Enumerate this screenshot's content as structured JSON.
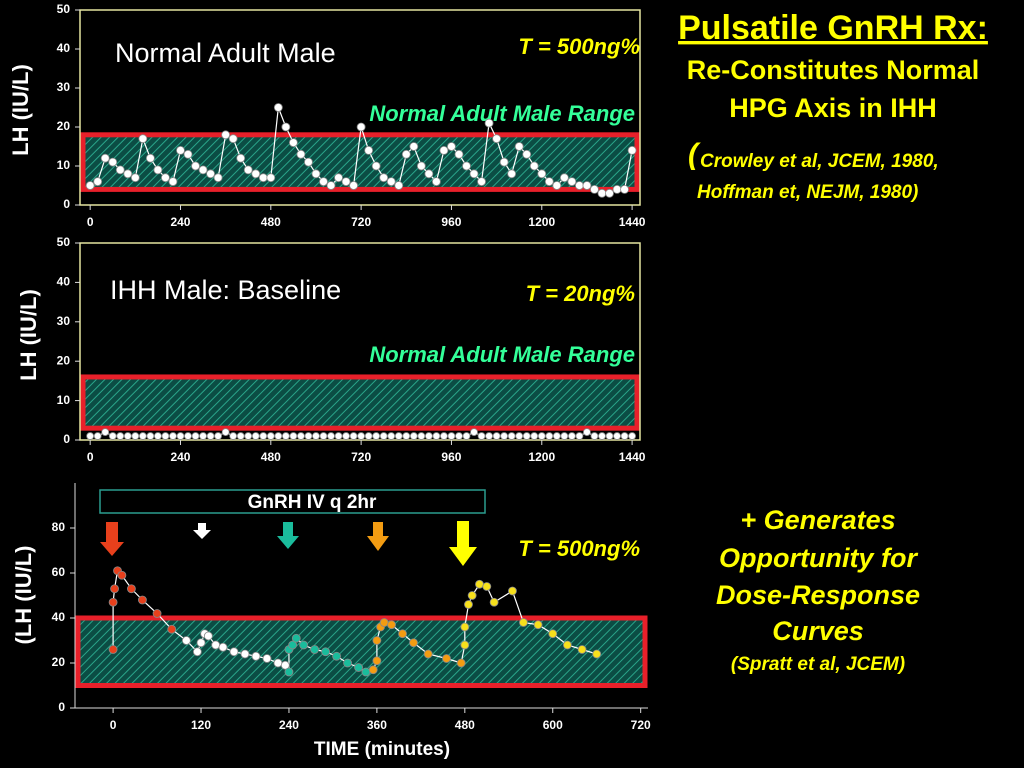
{
  "slide": {
    "title": "Pulsatile GnRH Rx:",
    "subtitle_lines": [
      "Re-Constitutes Normal",
      "HPG Axis in IHH"
    ],
    "citation_open": "(",
    "citation_lines": [
      "Crowley et al, JCEM, 1980,",
      "Hoffman et, NEJM, 1980)"
    ],
    "note_lines": [
      "+ Generates",
      "Opportunity for",
      "Dose-Response",
      "Curves"
    ],
    "note_citation": "(Spratt et al, JCEM)"
  },
  "chart_data": [
    {
      "type": "line",
      "title": "Normal Adult Male",
      "annotation": "T = 500ng%",
      "range_label": "Normal Adult Male Range",
      "ylabel": "LH (IU/L)",
      "normal_range": [
        4,
        18
      ],
      "xlim": [
        -27,
        1461
      ],
      "ylim": [
        0,
        50
      ],
      "xticks": [
        0,
        240,
        480,
        720,
        960,
        1200,
        1440
      ],
      "yticks": [
        0,
        10,
        20,
        30,
        40,
        50
      ],
      "x": [
        0,
        20,
        40,
        60,
        80,
        100,
        120,
        140,
        160,
        180,
        200,
        220,
        240,
        260,
        280,
        300,
        320,
        340,
        360,
        380,
        400,
        420,
        440,
        460,
        480,
        500,
        520,
        540,
        560,
        580,
        600,
        620,
        640,
        660,
        680,
        700,
        720,
        740,
        760,
        780,
        800,
        820,
        840,
        860,
        880,
        900,
        920,
        940,
        960,
        980,
        1000,
        1020,
        1040,
        1060,
        1080,
        1100,
        1120,
        1140,
        1160,
        1180,
        1200,
        1220,
        1240,
        1260,
        1280,
        1300,
        1320,
        1340,
        1360,
        1380,
        1400,
        1420,
        1440
      ],
      "series": [
        {
          "color": "#ffffff",
          "values": [
            5,
            6,
            12,
            11,
            9,
            8,
            7,
            17,
            12,
            9,
            7,
            6,
            14,
            13,
            10,
            9,
            8,
            7,
            18,
            17,
            12,
            9,
            8,
            7,
            7,
            25,
            20,
            16,
            13,
            11,
            8,
            6,
            5,
            7,
            6,
            5,
            20,
            14,
            10,
            7,
            6,
            5,
            13,
            15,
            10,
            8,
            6,
            14,
            15,
            13,
            10,
            8,
            6,
            21,
            17,
            11,
            8,
            15,
            13,
            10,
            8,
            6,
            5,
            7,
            6,
            5,
            5,
            4,
            3,
            3,
            4,
            4,
            14
          ]
        }
      ]
    },
    {
      "type": "line",
      "title": "IHH Male: Baseline",
      "annotation": "T = 20ng%",
      "range_label": "Normal Adult Male Range",
      "ylabel": "LH (IU/L)",
      "normal_range": [
        3,
        16
      ],
      "xlim": [
        -27,
        1461
      ],
      "ylim": [
        0,
        50
      ],
      "xticks": [
        0,
        240,
        480,
        720,
        960,
        1200,
        1440
      ],
      "yticks": [
        0,
        10,
        20,
        30,
        40,
        50
      ],
      "x": [
        0,
        20,
        40,
        60,
        80,
        100,
        120,
        140,
        160,
        180,
        200,
        220,
        240,
        260,
        280,
        300,
        320,
        340,
        360,
        380,
        400,
        420,
        440,
        460,
        480,
        500,
        520,
        540,
        560,
        580,
        600,
        620,
        640,
        660,
        680,
        700,
        720,
        740,
        760,
        780,
        800,
        820,
        840,
        860,
        880,
        900,
        920,
        940,
        960,
        980,
        1000,
        1020,
        1040,
        1060,
        1080,
        1100,
        1120,
        1140,
        1160,
        1180,
        1200,
        1220,
        1240,
        1260,
        1280,
        1300,
        1320,
        1340,
        1360,
        1380,
        1400,
        1420,
        1440
      ],
      "series": [
        {
          "color": "#ffffff",
          "values": [
            1,
            1,
            2,
            1,
            1,
            1,
            1,
            1,
            1,
            1,
            1,
            1,
            1,
            1,
            1,
            1,
            1,
            1,
            2,
            1,
            1,
            1,
            1,
            1,
            1,
            1,
            1,
            1,
            1,
            1,
            1,
            1,
            1,
            1,
            1,
            1,
            1,
            1,
            1,
            1,
            1,
            1,
            1,
            1,
            1,
            1,
            1,
            1,
            1,
            1,
            1,
            2,
            1,
            1,
            1,
            1,
            1,
            1,
            1,
            1,
            1,
            1,
            1,
            1,
            1,
            1,
            2,
            1,
            1,
            1,
            1,
            1,
            1
          ]
        }
      ]
    },
    {
      "type": "line",
      "annotation": "T = 500ng%",
      "box_label": "GnRH IV q 2hr",
      "ylabel": "(LH (IU/L)",
      "xlabel": "TIME (minutes)",
      "normal_range": [
        10,
        40
      ],
      "xlim": [
        -52,
        730
      ],
      "ylim": [
        0,
        100
      ],
      "xticks": [
        0,
        120,
        240,
        360,
        480,
        600,
        720
      ],
      "yticks": [
        0,
        20,
        40,
        60,
        80
      ],
      "series": [
        {
          "color": "#e8401c",
          "x": [
            0,
            0,
            2,
            6,
            12,
            25,
            40,
            60,
            80
          ],
          "values": [
            26,
            47,
            53,
            61,
            59,
            53,
            48,
            42,
            35
          ]
        },
        {
          "color": "#ffffff",
          "x": [
            100,
            115,
            120,
            125,
            130,
            140,
            150,
            165,
            180,
            195,
            210,
            225,
            235
          ],
          "values": [
            30,
            25,
            29,
            33,
            32,
            28,
            27,
            25,
            24,
            23,
            22,
            20,
            19
          ]
        },
        {
          "color": "#1abc9c",
          "x": [
            240,
            240,
            245,
            250,
            260,
            275,
            290,
            305,
            320,
            335,
            345
          ],
          "values": [
            16,
            26,
            28,
            31,
            28,
            26,
            25,
            23,
            20,
            18,
            16
          ]
        },
        {
          "color": "#f39c12",
          "x": [
            355,
            360,
            360,
            365,
            370,
            380,
            395,
            410,
            430,
            455,
            475
          ],
          "values": [
            17,
            21,
            30,
            36,
            38,
            37,
            33,
            29,
            24,
            22,
            20
          ]
        },
        {
          "color": "#f7e01c",
          "x": [
            480,
            480,
            485,
            490,
            500,
            510,
            520,
            545,
            560,
            580,
            600,
            620,
            640,
            660
          ],
          "values": [
            28,
            36,
            46,
            50,
            55,
            54,
            47,
            52,
            38,
            37,
            33,
            28,
            26,
            24
          ]
        }
      ]
    }
  ]
}
